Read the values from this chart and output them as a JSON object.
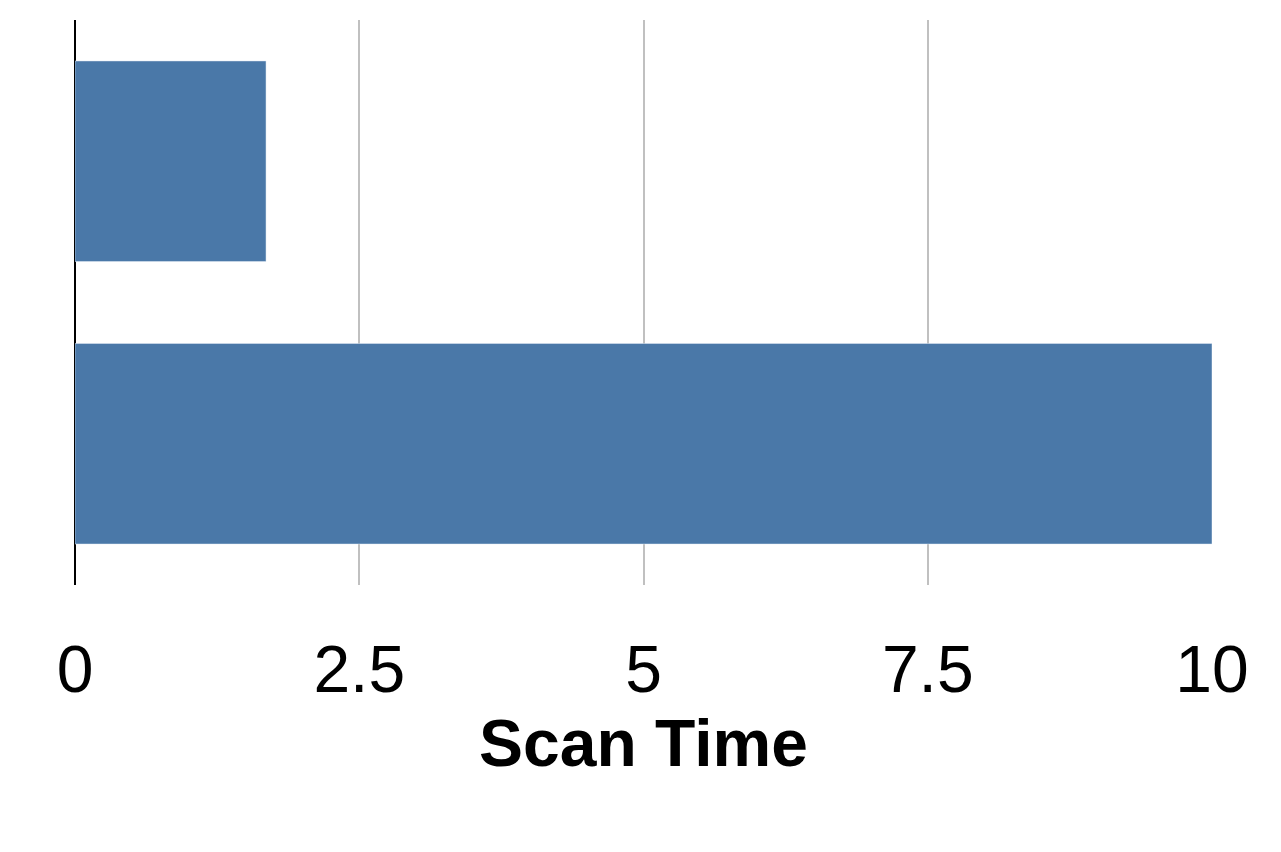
{
  "chart_data": {
    "type": "bar",
    "orientation": "horizontal",
    "xlabel": "Scan Time",
    "categories": [
      null,
      null
    ],
    "values": [
      1.68,
      10
    ],
    "color": "#4a78a8",
    "xlim": [
      0,
      10
    ],
    "xticks": [
      0,
      2.5,
      5,
      7.5,
      10
    ],
    "grid": "x",
    "tick_labels": "x"
  }
}
